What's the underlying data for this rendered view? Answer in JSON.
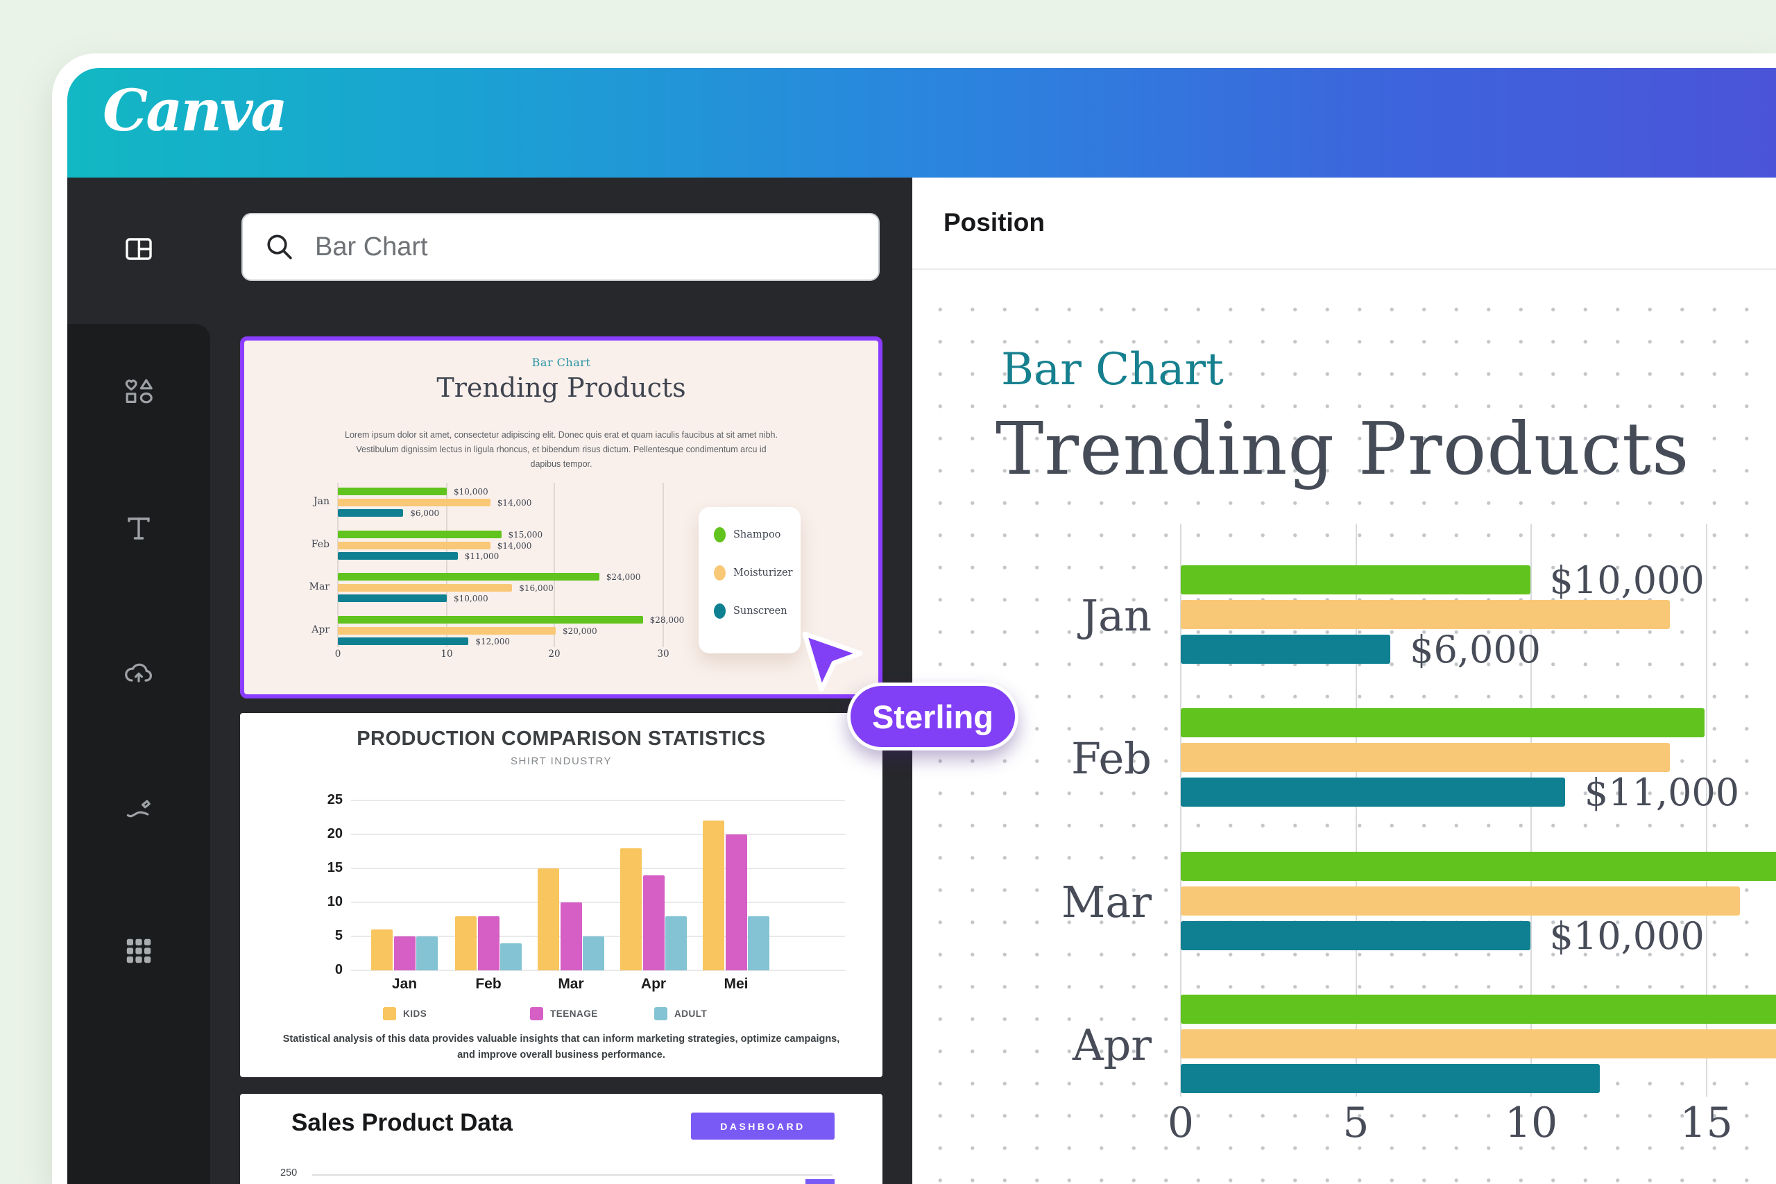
{
  "colors": {
    "outer_background": "#eaf3e8",
    "header_gradient_left": "#12b8c3",
    "header_gradient_right": "#4b54d9",
    "rail_dark": "#1b1c1e",
    "panel_dark": "#27282b",
    "selection_purple": "#8b3dff",
    "cursor_purple": "#8140f5",
    "button_purple": "#7a5af5",
    "bar_green": "#61c31d",
    "bar_orange": "#f9c877",
    "bar_teal": "#0e8091",
    "accent_teal_text": "#16808f"
  },
  "header": {
    "logo": "Canva"
  },
  "sidebar": {
    "tools": [
      {
        "id": "design",
        "icon": "layout-panel-icon",
        "active": true
      },
      {
        "id": "elements",
        "icon": "shapes-icon",
        "active": false
      },
      {
        "id": "text",
        "icon": "text-icon",
        "active": false
      },
      {
        "id": "uploads",
        "icon": "cloud-upload-icon",
        "active": false
      },
      {
        "id": "draw",
        "icon": "draw-icon",
        "active": false
      },
      {
        "id": "apps",
        "icon": "apps-grid-icon",
        "active": false
      }
    ]
  },
  "panel": {
    "search": {
      "query": "Bar Chart"
    }
  },
  "templates": {
    "trending": {
      "badge": "Bar Chart",
      "title": "Trending Products",
      "body": [
        "Lorem ipsum dolor sit amet, consectetur adipiscing elit. Donec quis erat et quam iaculis faucibus at sit amet nibh.",
        "Vestibulum dignissim lectus in ligula rhoncus, et bibendum risus dictum. Pellentesque condimentum arcu id",
        "dapibus tempor."
      ]
    },
    "production": {
      "title": "PRODUCTION COMPARISON STATISTICS",
      "subtitle": "SHIRT INDUSTRY",
      "footer": [
        "Statistical analysis of this data provides valuable insights that can inform marketing strategies, optimize campaigns,",
        "and improve overall business performance."
      ]
    },
    "sales": {
      "title": "Sales Product Data",
      "button": "DASHBOARD",
      "axis_tick": "250"
    }
  },
  "cursor": {
    "label": "Sterling"
  },
  "canvas": {
    "panel_title": "Position",
    "badge": "Bar Chart",
    "title": "Trending Products"
  },
  "chart_data": [
    {
      "id": "template-trending-chart",
      "type": "bar",
      "orientation": "horizontal",
      "title": "Trending Products",
      "categories": [
        "Jan",
        "Feb",
        "Mar",
        "Apr"
      ],
      "x_ticks": [
        "0",
        "10",
        "20",
        "30"
      ],
      "xlim": [
        0,
        30
      ],
      "grid": "vertical",
      "legend_position": "right-card",
      "series": [
        {
          "name": "Shampoo",
          "color": "#61c31d",
          "values": [
            10,
            15,
            24,
            28
          ]
        },
        {
          "name": "Moisturizer",
          "color": "#f9c877",
          "values": [
            14,
            14,
            16,
            20
          ]
        },
        {
          "name": "Sunscreen",
          "color": "#0e8091",
          "values": [
            6,
            11,
            10,
            12
          ]
        }
      ],
      "bar_labels": [
        [
          "$10,000",
          "$14,000",
          "$6,000"
        ],
        [
          "$15,000",
          "$14,000",
          "$11,000"
        ],
        [
          "$24,000",
          "$16,000",
          "$10,000"
        ],
        [
          "$28,000",
          "$20,000",
          "$12,000"
        ]
      ]
    },
    {
      "id": "template-production-chart",
      "type": "bar",
      "orientation": "vertical",
      "title": "PRODUCTION COMPARISON STATISTICS",
      "subtitle": "SHIRT INDUSTRY",
      "categories": [
        "Jan",
        "Feb",
        "Mar",
        "Apr",
        "Mei"
      ],
      "y_ticks": [
        "25",
        "20",
        "15",
        "10",
        "5",
        "0"
      ],
      "ylim": [
        0,
        25
      ],
      "grid": "horizontal",
      "legend_position": "bottom",
      "series": [
        {
          "name": "KIDS",
          "color": "#f8c55e",
          "values": [
            6,
            8,
            15,
            18,
            22
          ]
        },
        {
          "name": "TEENAGE",
          "color": "#d55fc5",
          "values": [
            5,
            8,
            10,
            14,
            20
          ]
        },
        {
          "name": "ADULT",
          "color": "#83c3d3",
          "values": [
            5,
            4,
            5,
            8,
            8
          ]
        }
      ]
    },
    {
      "id": "canvas-trending-chart",
      "type": "bar",
      "orientation": "horizontal",
      "title": "Trending Products",
      "categories": [
        "Jan",
        "Feb",
        "Mar",
        "Apr"
      ],
      "x_ticks": [
        "0",
        "5",
        "10",
        "15"
      ],
      "xlim": [
        0,
        15
      ],
      "grid": "vertical",
      "series": [
        {
          "name": "Shampoo",
          "color": "#61c31d",
          "values": [
            10,
            15,
            24,
            28
          ]
        },
        {
          "name": "Moisturizer",
          "color": "#f9c877",
          "values": [
            14,
            14,
            16,
            20
          ]
        },
        {
          "name": "Sunscreen",
          "color": "#0e8091",
          "values": [
            6,
            11,
            10,
            12
          ]
        }
      ],
      "bar_labels": [
        [
          "$10,000",
          null,
          "$6,000"
        ],
        [
          null,
          null,
          "$11,000"
        ],
        [
          null,
          null,
          "$10,000"
        ],
        [
          null,
          null,
          null
        ]
      ]
    }
  ]
}
